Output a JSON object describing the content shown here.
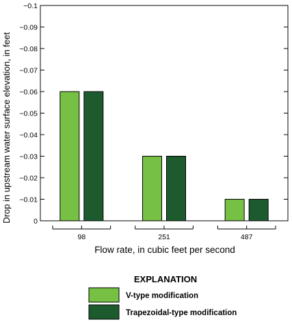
{
  "chart_data": {
    "type": "bar",
    "title": "",
    "categories": [
      "98",
      "251",
      "487"
    ],
    "series": [
      {
        "name": "V-type modification",
        "values": [
          -0.06,
          -0.03,
          -0.01
        ],
        "color": "#76c044"
      },
      {
        "name": "Trapezoidal-type modification",
        "values": [
          -0.06,
          -0.03,
          -0.01
        ],
        "color": "#1d5b2e"
      }
    ],
    "xlabel": "Flow rate, in cubic feet per second",
    "ylabel": "Drop in upstream water surface elevation, in feet",
    "ylim": [
      0,
      -0.1
    ],
    "yticks": [
      "0",
      "−0.01",
      "−0.02",
      "−0.03",
      "−0.04",
      "−0.05",
      "−0.06",
      "−0.07",
      "−0.08",
      "−0.09",
      "−0.1"
    ],
    "grid": false,
    "legend": {
      "title": "EXPLANATION",
      "placement": "bottom-center"
    }
  }
}
